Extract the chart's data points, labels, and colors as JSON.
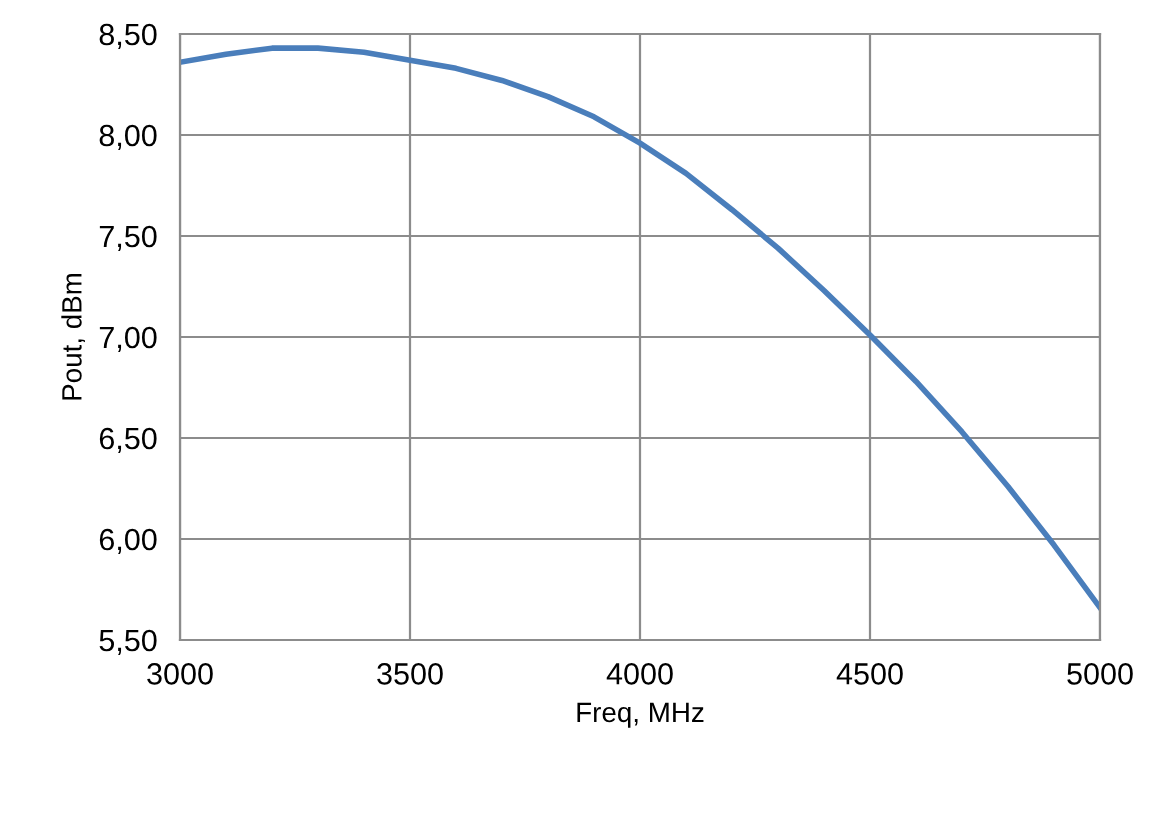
{
  "chart_data": {
    "type": "line",
    "xlabel": "Freq, MHz",
    "ylabel": "Pout, dBm",
    "x": [
      3000,
      3100,
      3200,
      3300,
      3400,
      3500,
      3600,
      3700,
      3800,
      3900,
      4000,
      4100,
      4200,
      4300,
      4400,
      4500,
      4600,
      4700,
      4800,
      4900,
      5000
    ],
    "series": [
      {
        "color": "#4a7ebb",
        "values": [
          8.36,
          8.4,
          8.43,
          8.43,
          8.41,
          8.37,
          8.33,
          8.27,
          8.19,
          8.09,
          7.96,
          7.81,
          7.63,
          7.44,
          7.23,
          7.01,
          6.78,
          6.53,
          6.26,
          5.97,
          5.66
        ]
      }
    ],
    "xlim": [
      3000,
      5000
    ],
    "xticks": [
      3000,
      3500,
      4000,
      4500,
      5000
    ],
    "ylim": [
      5.5,
      8.5
    ],
    "yticks": [
      {
        "value": 5.5,
        "label": "5,50"
      },
      {
        "value": 6.0,
        "label": "6,00"
      },
      {
        "value": 6.5,
        "label": "6,50"
      },
      {
        "value": 7.0,
        "label": "7,00"
      },
      {
        "value": 7.5,
        "label": "7,50"
      },
      {
        "value": 8.0,
        "label": "8,00"
      },
      {
        "value": 8.5,
        "label": "8,50"
      }
    ],
    "grid": true,
    "marker": "none",
    "line_style": "solid"
  }
}
